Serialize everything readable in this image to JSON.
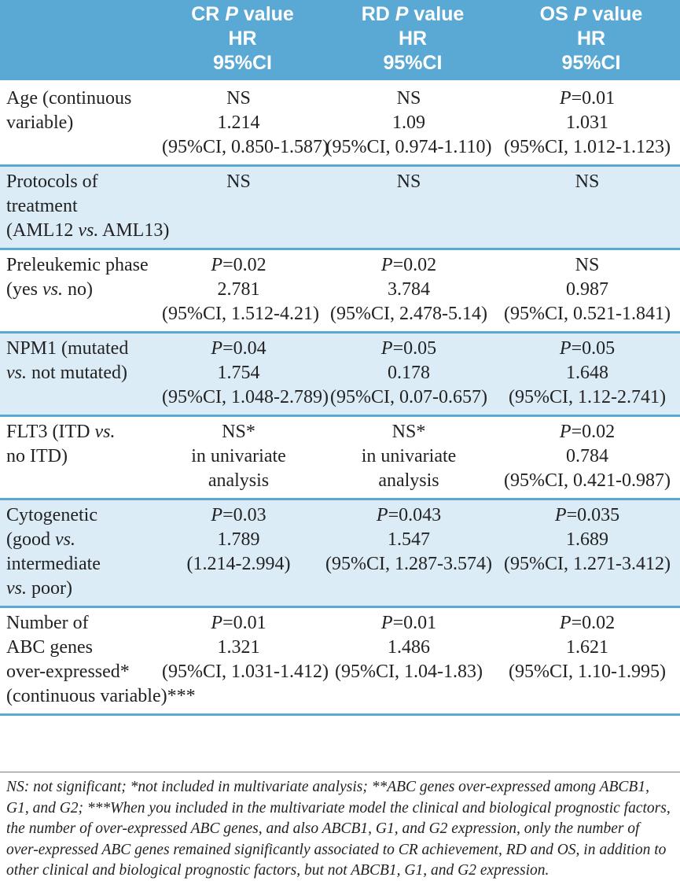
{
  "header": {
    "label_col": "",
    "columns": [
      {
        "l1_main": "CR ",
        "l1_italic": "P",
        "l1_tail": " value",
        "l2": "HR",
        "l3": "95%CI"
      },
      {
        "l1_main": "RD ",
        "l1_italic": "P",
        "l1_tail": " value",
        "l2": "HR",
        "l3": "95%CI"
      },
      {
        "l1_main": "OS ",
        "l1_italic": "P",
        "l1_tail": " value",
        "l2": "HR",
        "l3": "95%CI"
      }
    ]
  },
  "rows": [
    {
      "label": [
        "Age (continuous",
        " variable)"
      ],
      "cells": [
        {
          "p": "NS",
          "hr": "1.214",
          "ci": "(95%CI, 0.850-1.587)"
        },
        {
          "p": "NS",
          "hr": "1.09",
          "ci": "(95%CI, 0.974-1.110)"
        },
        {
          "p": "P=0.01",
          "hr": "1.031",
          "ci": "(95%CI, 1.012-1.123)"
        }
      ]
    },
    {
      "label": [
        "Protocols of",
        "treatment",
        "(AML12 vs. AML13)"
      ],
      "cells": [
        {
          "p": "NS",
          "hr": "",
          "ci": ""
        },
        {
          "p": "NS",
          "hr": "",
          "ci": ""
        },
        {
          "p": "NS",
          "hr": "",
          "ci": ""
        }
      ]
    },
    {
      "label": [
        "Preleukemic phase",
        "(yes vs. no)"
      ],
      "cells": [
        {
          "p": "P=0.02",
          "hr": "2.781",
          "ci": "(95%CI, 1.512-4.21)"
        },
        {
          "p": "P=0.02",
          "hr": "3.784",
          "ci": "(95%CI, 2.478-5.14)"
        },
        {
          "p": "NS",
          "hr": "0.987",
          "ci": "(95%CI, 0.521-1.841)"
        }
      ]
    },
    {
      "label": [
        "NPM1 (mutated",
        "vs. not mutated)"
      ],
      "cells": [
        {
          "p": "P=0.04",
          "hr": "1.754",
          "ci": "(95%CI, 1.048-2.789)"
        },
        {
          "p": "P=0.05",
          "hr": "0.178",
          "ci": "(95%CI, 0.07-0.657)"
        },
        {
          "p": "P=0.05",
          "hr": "1.648",
          "ci": "(95%CI, 1.12-2.741)"
        }
      ]
    },
    {
      "label": [
        "FLT3 (ITD vs.",
        "no ITD)"
      ],
      "cells": [
        {
          "p": "NS*",
          "hr": "in univariate",
          "ci": "analysis"
        },
        {
          "p": "NS*",
          "hr": "in univariate",
          "ci": "analysis"
        },
        {
          "p": "P=0.02",
          "hr": "0.784",
          "ci": "(95%CI, 0.421-0.987)"
        }
      ]
    },
    {
      "label": [
        "Cytogenetic",
        "(good vs.",
        "intermediate",
        "vs. poor)"
      ],
      "cells": [
        {
          "p": "P=0.03",
          "hr": "1.789",
          "ci": "(1.214-2.994)"
        },
        {
          "p": "P=0.043",
          "hr": "1.547",
          "ci": "(95%CI, 1.287-3.574)"
        },
        {
          "p": "P=0.035",
          "hr": "1.689",
          "ci": "(95%CI, 1.271-3.412)"
        }
      ]
    },
    {
      "label": [
        "Number of",
        "ABC genes",
        "over-expressed*",
        "(continuous variable)***"
      ],
      "cells": [
        {
          "p": "P=0.01",
          "hr": "1.321",
          "ci": "(95%CI, 1.031-1.412)"
        },
        {
          "p": "P=0.01",
          "hr": "1.486",
          "ci": "(95%CI, 1.04-1.83)"
        },
        {
          "p": "P=0.02",
          "hr": "1.621",
          "ci": "(95%CI, 1.10-1.995)"
        }
      ]
    }
  ],
  "footnote": "NS: not significant; *not included in multivariate analysis; **ABC genes over-expressed among ABCB1, G1, and G2; ***When you included in the multivariate model the clinical and biological prognostic factors, the number of over-expressed ABC genes, and also ABCB1, G1, and G2 expression, only the number of over-expressed ABC genes remained significantly associated to CR achievement, RD and OS, in addition to other clinical and biological prognostic factors, but not ABCB1, G1, and G2 expression.",
  "colors": {
    "header_bg": "#5aa9d4",
    "shade_bg": "#dcecf7",
    "text": "#222222"
  }
}
